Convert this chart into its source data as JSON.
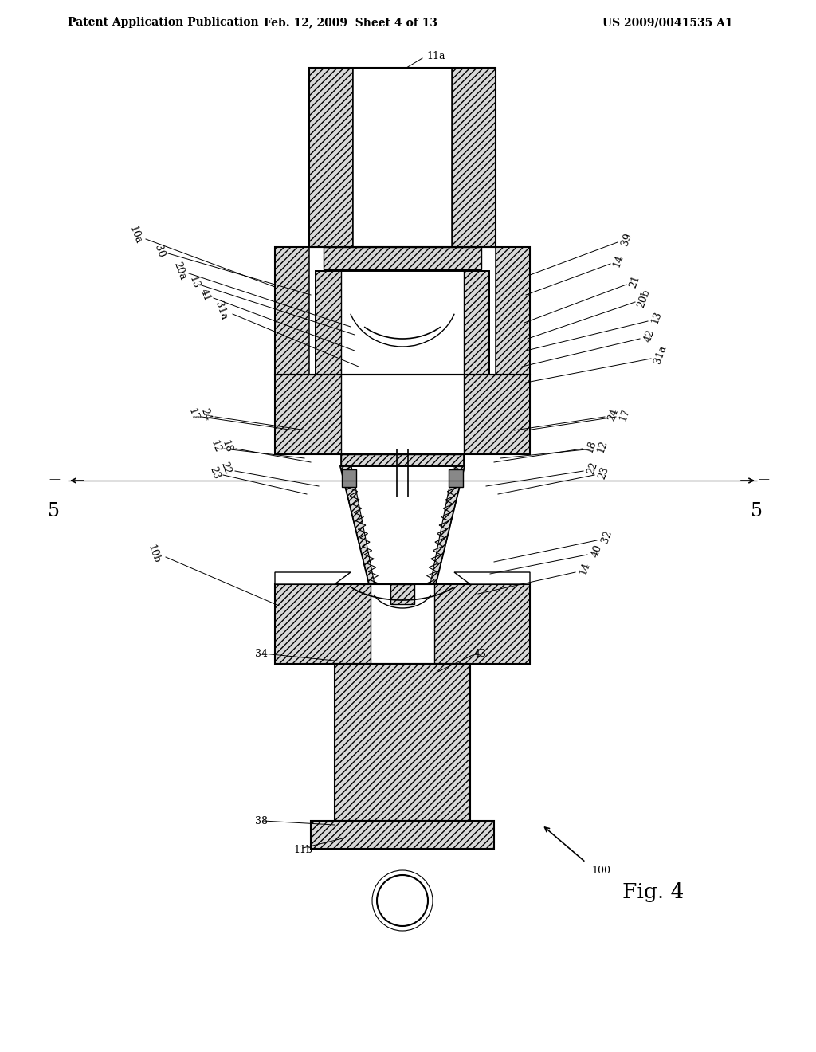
{
  "bg_color": "#ffffff",
  "header_left": "Patent Application Publication",
  "header_center": "Feb. 12, 2009  Sheet 4 of 13",
  "header_right": "US 2009/0041535 A1",
  "fig_label": "Fig. 4",
  "fig_number": "100"
}
